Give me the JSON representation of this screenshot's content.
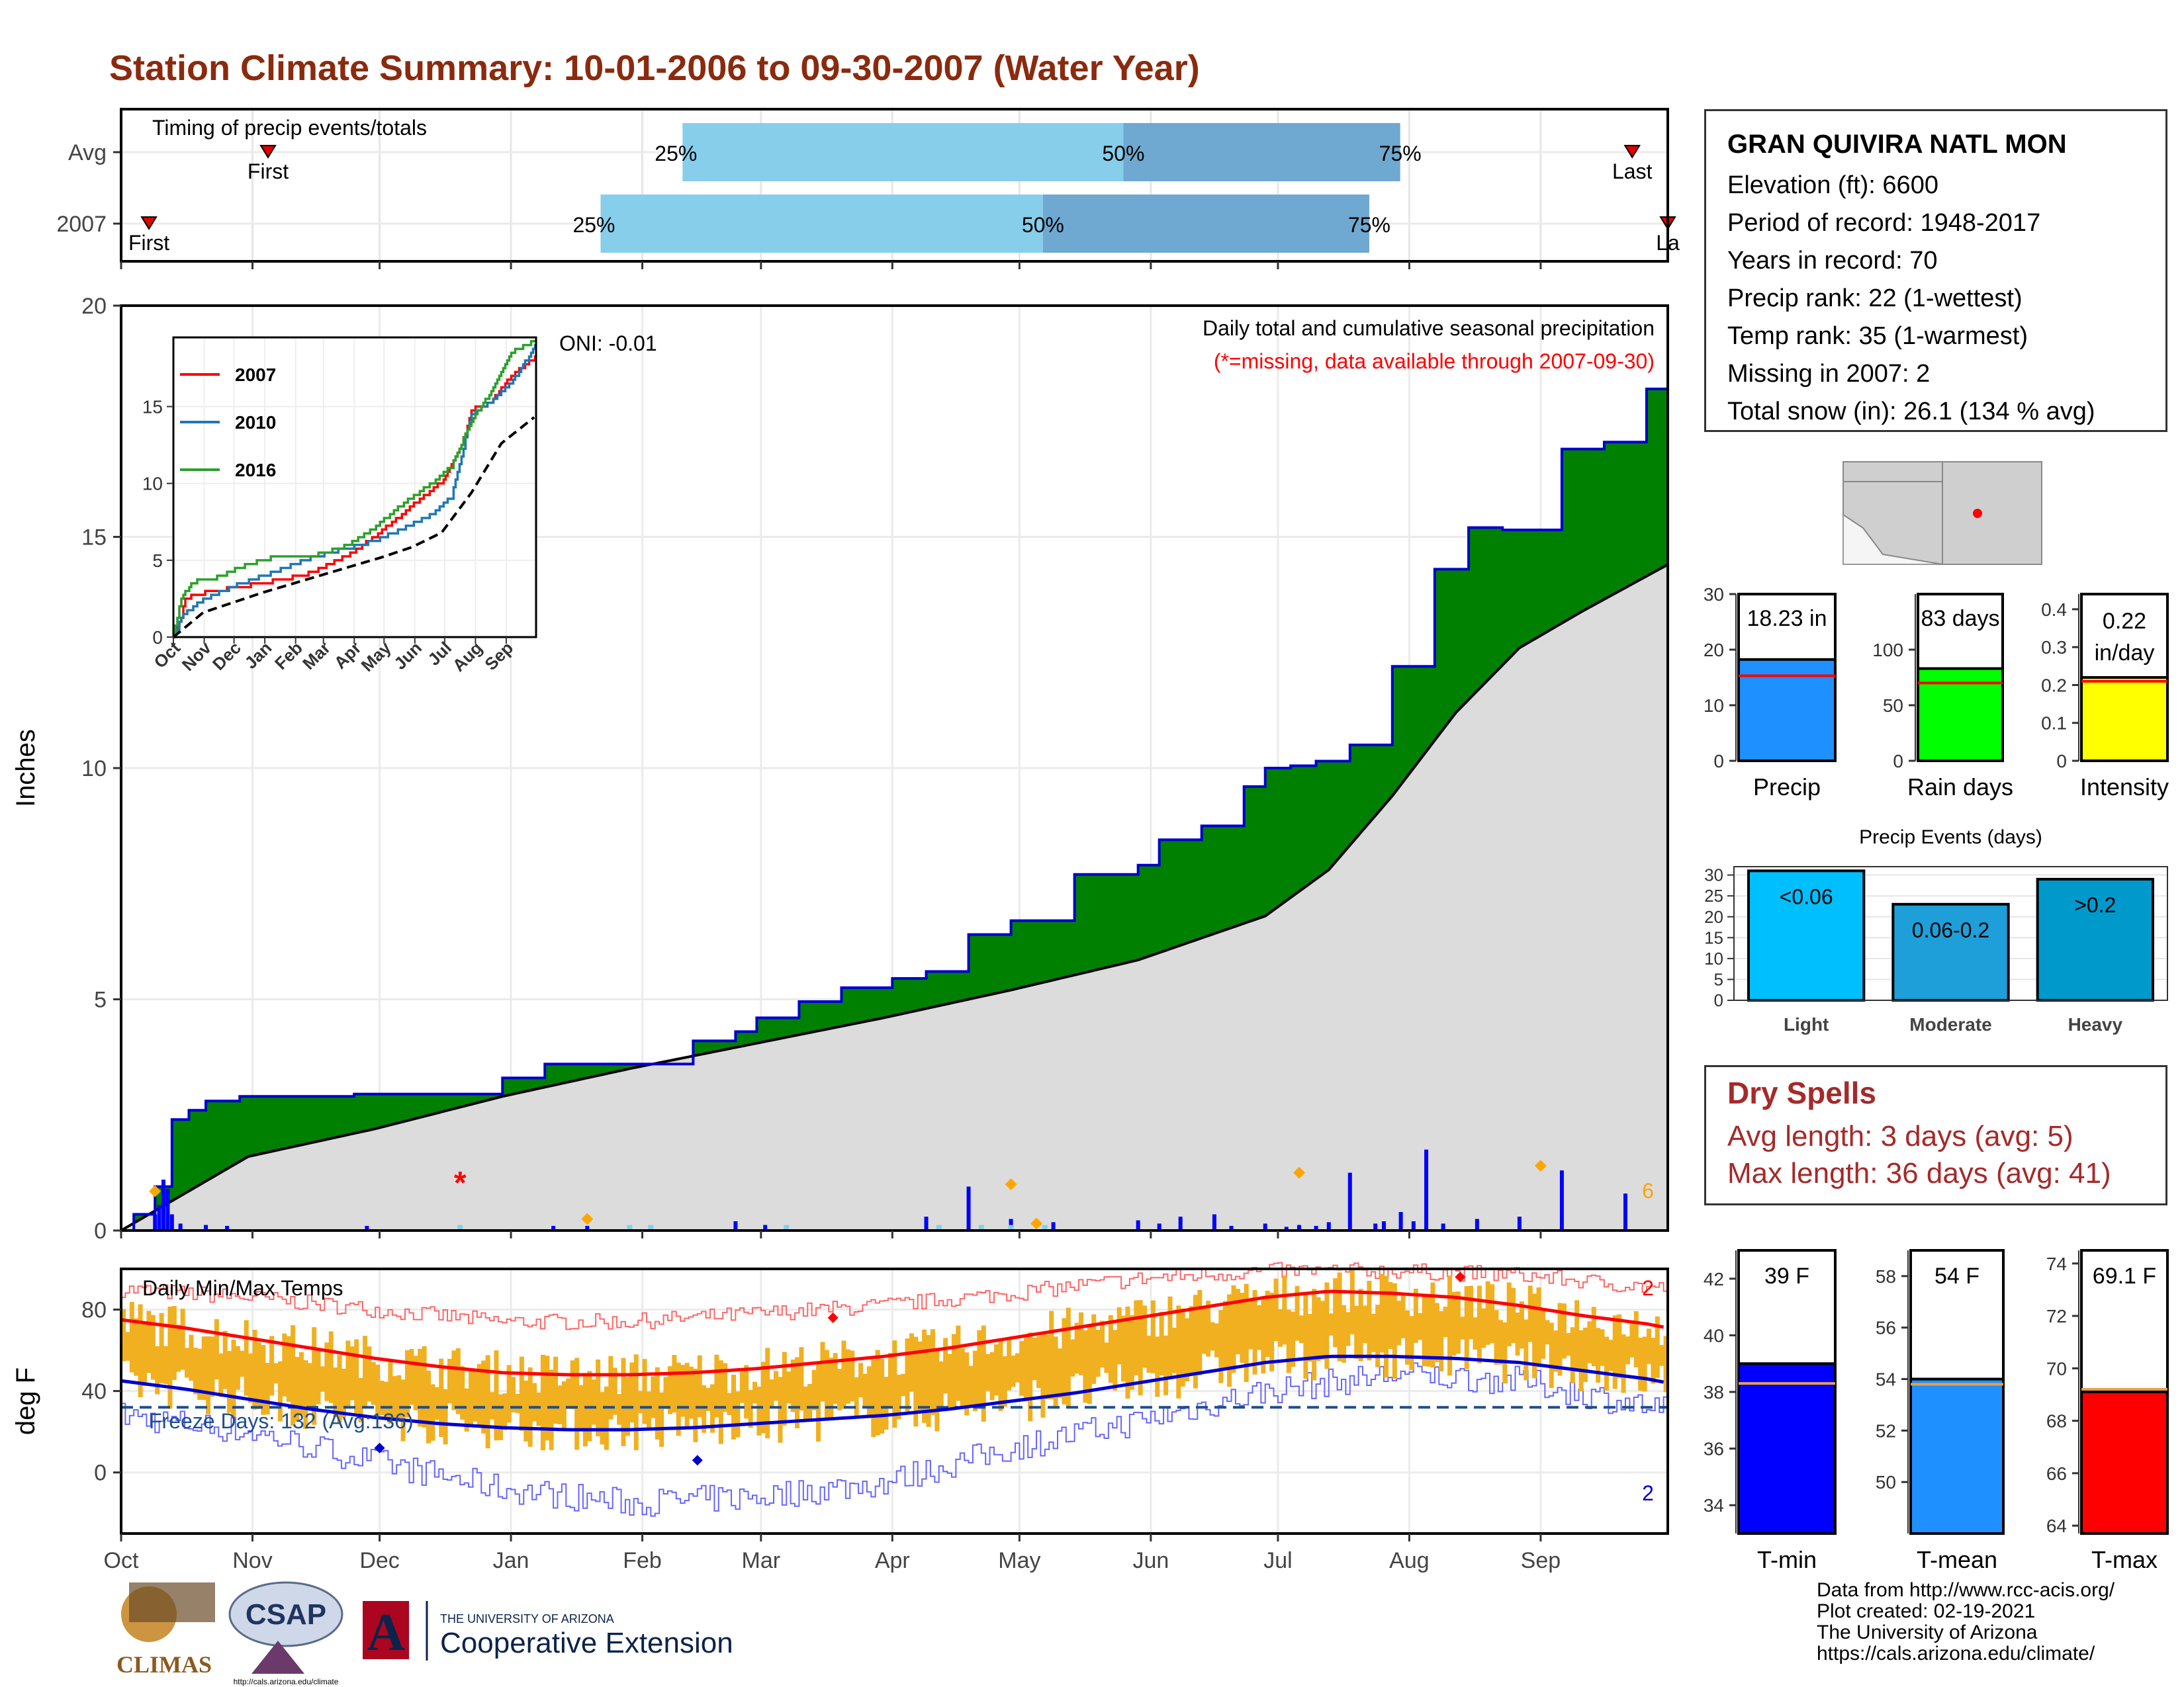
{
  "title": "Station Climate Summary: 10-01-2006 to 09-30-2007 (Water Year)",
  "timing": {
    "label": "Timing of precip events/totals",
    "rows": [
      {
        "name": "Avg",
        "first": 0.095,
        "p25": 0.363,
        "p50": 0.648,
        "p75": 0.827,
        "last": 0.977,
        "first_label": "First",
        "last_label": "Last"
      },
      {
        "name": "2007",
        "first": 0.018,
        "p25": 0.31,
        "p50": 0.596,
        "p75": 0.807,
        "last": 1.0,
        "first_label": "First",
        "last_label": "La"
      }
    ],
    "pct_labels": [
      "25%",
      "50%",
      "75%"
    ]
  },
  "station": {
    "name": "GRAN QUIVIRA NATL MON",
    "lines": [
      "Elevation (ft): 6600",
      "Period of record: 1948-2017",
      "Years in record: 70",
      "Precip rank: 22 (1-wettest)",
      "Temp rank: 35 (1-warmest)",
      "Missing in 2007: 2",
      "Total snow (in): 26.1 (134 % avg)"
    ]
  },
  "summary_bars": [
    {
      "name": "Precip",
      "label": "18.23 in",
      "value": 18.23,
      "avg": 15.3,
      "ymax": 30,
      "ticks": [
        0,
        10,
        20,
        30
      ],
      "color": "#1e90ff"
    },
    {
      "name": "Rain days",
      "label": "83 days",
      "value": 83,
      "avg": 70,
      "ymax": 150,
      "ticks": [
        0,
        50,
        100
      ],
      "color": "#00ff00"
    },
    {
      "name": "Intensity",
      "label": "0.22 in/day",
      "label_line1": "0.22",
      "label_line2": "in/day",
      "value": 0.22,
      "avg": 0.21,
      "ymax": 0.44,
      "ticks": [
        0.0,
        0.1,
        0.2,
        0.3,
        0.4
      ],
      "color": "#ffff00"
    }
  ],
  "precip_events": {
    "title": "Precip Events (days)",
    "categories": [
      "Light",
      "Moderate",
      "Heavy"
    ],
    "labels": [
      "<0.06",
      "0.06-0.2",
      ">0.2"
    ],
    "values": [
      31,
      23,
      29
    ],
    "ymax": 32,
    "ticks": [
      0,
      5,
      10,
      15,
      20,
      25,
      30
    ],
    "colors": [
      "#00bfff",
      "#1e9fd9",
      "#0099cc"
    ]
  },
  "dry_spells": {
    "title": "Dry Spells",
    "avg_line": "Avg length: 3 days (avg: 5)",
    "max_line": "Max length: 36 days (avg: 41)"
  },
  "temp_bars": [
    {
      "name": "T-min",
      "label": "39 F",
      "value": 39,
      "avg": 38.3,
      "ymin": 33,
      "ymax": 43,
      "ticks": [
        34,
        36,
        38,
        40,
        42
      ],
      "color": "#0000ff"
    },
    {
      "name": "T-mean",
      "label": "54 F",
      "value": 54,
      "avg": 53.8,
      "ymin": 48,
      "ymax": 59,
      "ticks": [
        50,
        52,
        54,
        56,
        58
      ],
      "color": "#1e90ff"
    },
    {
      "name": "T-max",
      "label": "69.1 F",
      "value": 69.1,
      "avg": 69.2,
      "ymin": 63.7,
      "ymax": 74.5,
      "ticks": [
        64,
        66,
        68,
        70,
        72,
        74
      ],
      "color": "#ff0000"
    }
  ],
  "credits": [
    "Data from http://www.rcc-acis.org/",
    "Plot created: 02-19-2021",
    "The University of Arizona",
    "https://cals.arizona.edu/climate/"
  ],
  "logos": {
    "climas": "CLIMAS",
    "csap": "CSAP",
    "csap_url": "http://cals.arizona.edu/climate",
    "ua_small": "THE UNIVERSITY OF ARIZONA",
    "ua_big": "Cooperative Extension",
    "ua_letter": "A"
  },
  "chart_data": [
    {
      "type": "area",
      "title": "Daily total and cumulative seasonal precipitation",
      "subtitle": "(*=missing, data available through 2007-09-30)",
      "ylabel": "Inches",
      "ylim": [
        0,
        20
      ],
      "yticks": [
        0,
        5,
        10,
        15,
        20
      ],
      "oni_label": "ONI: -0.01",
      "corner_count": "6",
      "xticks": [
        "Oct",
        "Nov",
        "Dec",
        "Jan",
        "Feb",
        "Mar",
        "Apr",
        "May",
        "Jun",
        "Jul",
        "Aug",
        "Sep"
      ],
      "cumulative_2007": {
        "name": "2007",
        "color": "#0000cd",
        "x_day": [
          0,
          3,
          8,
          12,
          16,
          20,
          28,
          40,
          55,
          90,
          100,
          135,
          145,
          150,
          160,
          170,
          175,
          182,
          190,
          200,
          210,
          225,
          240,
          245,
          255,
          265,
          270,
          276,
          282,
          290,
          300,
          310,
          318,
          326,
          340,
          350,
          360,
          365
        ],
        "y": [
          0.0,
          0.35,
          0.95,
          2.4,
          2.6,
          2.8,
          2.9,
          2.9,
          2.95,
          3.3,
          3.6,
          4.1,
          4.3,
          4.6,
          4.95,
          5.25,
          5.25,
          5.45,
          5.6,
          6.4,
          6.7,
          7.7,
          7.9,
          8.45,
          8.75,
          9.6,
          10.0,
          10.05,
          10.15,
          10.5,
          12.2,
          14.3,
          15.2,
          15.15,
          16.9,
          17.05,
          18.2,
          18.23
        ]
      },
      "cumulative_avg": {
        "name": "Avg",
        "x_day": [
          0,
          15,
          30,
          60,
          90,
          120,
          150,
          180,
          210,
          240,
          270,
          285,
          300,
          315,
          330,
          345,
          365
        ],
        "y": [
          0.0,
          0.8,
          1.6,
          2.2,
          2.9,
          3.5,
          4.05,
          4.6,
          5.2,
          5.85,
          6.8,
          7.8,
          9.4,
          11.2,
          12.6,
          13.4,
          14.4
        ]
      },
      "daily_precip": {
        "color": "#0000ff",
        "x_day": [
          8,
          9,
          10,
          11,
          12,
          14,
          20,
          25,
          58,
          102,
          110,
          120,
          145,
          152,
          190,
          200,
          210,
          220,
          240,
          245,
          250,
          258,
          262,
          270,
          275,
          278,
          282,
          285,
          290,
          296,
          298,
          302,
          305,
          308,
          312,
          320,
          330,
          340,
          355
        ],
        "values": [
          0.35,
          0.55,
          1.1,
          0.9,
          0.35,
          0.15,
          0.12,
          0.1,
          0.1,
          0.1,
          0.1,
          0.08,
          0.2,
          0.12,
          0.3,
          0.95,
          0.25,
          0.18,
          0.22,
          0.15,
          0.3,
          0.35,
          0.1,
          0.15,
          0.08,
          0.12,
          0.1,
          0.18,
          1.25,
          0.15,
          0.2,
          0.4,
          0.2,
          1.75,
          0.15,
          0.25,
          0.3,
          1.3,
          0.8
        ]
      },
      "missing_marker_day": 80,
      "missing_marker_value": 1.0,
      "events_markers_day": [
        8,
        110,
        210,
        216,
        278,
        335
      ],
      "events_markers_value": [
        0.85,
        0.25,
        1.0,
        0.15,
        1.25,
        1.4
      ],
      "inset": {
        "yticks": [
          0,
          5,
          10,
          15
        ],
        "ylim": [
          0,
          19.5
        ],
        "xticks": [
          "Oct",
          "Nov",
          "Dec",
          "Jan",
          "Feb",
          "Mar",
          "Apr",
          "May",
          "Jun",
          "Jul",
          "Aug",
          "Sep"
        ],
        "series": [
          {
            "name": "2007",
            "color": "#ff0000",
            "x_day": [
              0,
              8,
              12,
              25,
              40,
              90,
              135,
              175,
              200,
              225,
              245,
              270,
              290,
              300,
              318,
              340,
              365
            ],
            "y": [
              0,
              1.3,
              2.5,
              2.8,
              3.0,
              3.5,
              4.1,
              5.3,
              6.4,
              7.7,
              8.8,
              10.1,
              12.4,
              14.8,
              15.2,
              17.0,
              18.23
            ]
          },
          {
            "name": "2010",
            "color": "#1f77b4",
            "x_day": [
              0,
              10,
              30,
              60,
              100,
              140,
              170,
              200,
              230,
              260,
              280,
              300,
              320,
              340,
              365
            ],
            "y": [
              0,
              1.5,
              2.4,
              3.3,
              4.2,
              5.2,
              5.7,
              6.2,
              7.0,
              8.0,
              9.1,
              14.5,
              15.3,
              16.5,
              19.0
            ]
          },
          {
            "name": "2016",
            "color": "#2ca02c",
            "x_day": [
              0,
              8,
              20,
              45,
              70,
              100,
              140,
              170,
              200,
              230,
              260,
              280,
              300,
              320,
              340,
              365
            ],
            "y": [
              0,
              2.6,
              3.6,
              3.9,
              4.6,
              5.2,
              5.3,
              5.8,
              7.0,
              8.6,
              10.0,
              11.1,
              14.1,
              16.0,
              18.5,
              19.3
            ]
          },
          {
            "name": "Avg",
            "color": "#000000",
            "x_day": [
              0,
              30,
              90,
              150,
              210,
              240,
              270,
              300,
              330,
              365
            ],
            "y": [
              0,
              1.6,
              2.9,
              4.05,
              5.2,
              5.85,
              6.8,
              9.4,
              12.6,
              14.4
            ]
          }
        ]
      }
    },
    {
      "type": "line",
      "title": "Daily Min/Max Temps",
      "ylabel": "deg F",
      "ylim": [
        -30,
        100
      ],
      "yticks": [
        0,
        40,
        80
      ],
      "freeze_label": "Freeze Days: 132 (Avg:136)",
      "freeze_line": 32,
      "count_top": "2",
      "count_bottom": "2",
      "xticks": [
        "Oct",
        "Nov",
        "Dec",
        "Jan",
        "Feb",
        "Mar",
        "Apr",
        "May",
        "Jun",
        "Jul",
        "Aug",
        "Sep"
      ],
      "avg_max": {
        "name": "Avg max",
        "color": "#ff0000",
        "x_day": [
          0,
          15,
          30,
          45,
          60,
          75,
          90,
          105,
          120,
          135,
          150,
          165,
          180,
          195,
          210,
          225,
          240,
          255,
          270,
          285,
          300,
          315,
          330,
          345,
          360,
          365
        ],
        "y": [
          75,
          71,
          66,
          61,
          56,
          52,
          49,
          48,
          48,
          49,
          51,
          54,
          57,
          61,
          66,
          71,
          76,
          81,
          86,
          89,
          88,
          86,
          82,
          77,
          73,
          71
        ]
      },
      "avg_min": {
        "name": "Avg min",
        "color": "#0000cd",
        "x_day": [
          0,
          15,
          30,
          45,
          60,
          75,
          90,
          105,
          120,
          135,
          150,
          165,
          180,
          195,
          210,
          225,
          240,
          255,
          270,
          285,
          300,
          315,
          330,
          345,
          360,
          365
        ],
        "y": [
          45,
          41,
          36,
          31,
          27,
          24,
          22,
          21,
          21,
          22,
          24,
          26,
          28,
          31,
          35,
          39,
          44,
          49,
          54,
          57,
          57,
          56,
          54,
          50,
          46,
          44
        ]
      },
      "record_high_upper": {
        "x_day": [
          0,
          30,
          60,
          90,
          120,
          150,
          180,
          210,
          240,
          270,
          300,
          330,
          365
        ],
        "y": [
          90,
          86,
          80,
          74,
          74,
          78,
          82,
          88,
          95,
          99,
          99,
          97,
          90
        ]
      },
      "record_low_lower": {
        "x_day": [
          0,
          30,
          60,
          90,
          120,
          150,
          180,
          210,
          240,
          270,
          300,
          330,
          365
        ],
        "y": [
          28,
          20,
          5,
          -8,
          -15,
          -12,
          -5,
          12,
          25,
          40,
          48,
          45,
          30
        ]
      },
      "daily_ranges_color": "#f0b020",
      "marker_max": {
        "x_day": [
          168,
          316
        ],
        "y": [
          76,
          96
        ]
      },
      "marker_min": {
        "x_day": [
          61,
          136
        ],
        "y": [
          12,
          6
        ]
      }
    }
  ]
}
